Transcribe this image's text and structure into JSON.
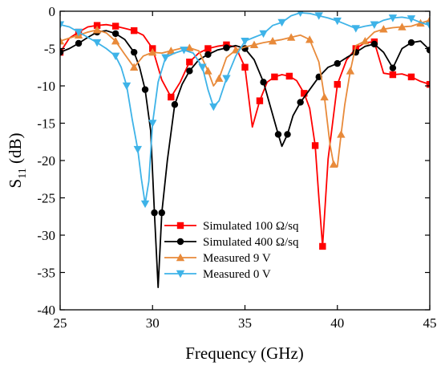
{
  "chart_data": {
    "type": "line",
    "xlabel": "Frequency (GHz)",
    "ylabel_main": "S",
    "ylabel_sub": "11",
    "ylabel_unit": " (dB)",
    "xlim": [
      25,
      45
    ],
    "ylim": [
      -40,
      0
    ],
    "xticks": [
      25,
      30,
      35,
      40,
      45
    ],
    "yticks": [
      0,
      -5,
      -10,
      -15,
      -20,
      -25,
      -30,
      -35,
      -40
    ],
    "legend_position": "lower-center",
    "series": [
      {
        "name": "Simulated 100 Ω/sq",
        "color": "#ff0000",
        "marker": "square",
        "x": [
          25,
          25.5,
          26,
          26.5,
          27,
          27.5,
          28,
          28.5,
          29,
          29.5,
          30,
          30.5,
          31,
          31.5,
          32,
          32.5,
          33,
          33.5,
          34,
          34.5,
          35,
          35.4,
          35.8,
          36.2,
          36.6,
          37,
          37.4,
          37.8,
          38.2,
          38.5,
          38.8,
          39.0,
          39.2,
          39.5,
          40,
          40.5,
          41,
          41.5,
          42,
          42.5,
          43,
          43.5,
          44,
          44.5,
          45
        ],
        "y": [
          -5.5,
          -3.6,
          -2.8,
          -2.1,
          -1.9,
          -1.8,
          -2.0,
          -2.3,
          -2.6,
          -3.2,
          -5.0,
          -9.2,
          -11.5,
          -9.5,
          -6.8,
          -5.6,
          -5.0,
          -4.7,
          -4.5,
          -4.8,
          -7.5,
          -15.5,
          -12.0,
          -9.5,
          -8.8,
          -8.5,
          -8.7,
          -9.3,
          -11.0,
          -13.0,
          -18.0,
          -25.0,
          -31.5,
          -19.8,
          -9.8,
          -6.5,
          -5.0,
          -4.2,
          -4.1,
          -8.3,
          -8.5,
          -8.4,
          -8.8,
          -9.4,
          -9.8
        ]
      },
      {
        "name": "Simulated 400 Ω/sq",
        "color": "#000000",
        "marker": "circle",
        "x": [
          25,
          25.5,
          26,
          26.5,
          27,
          27.5,
          28,
          28.5,
          29,
          29.3,
          29.6,
          29.9,
          30.1,
          30.3,
          30.5,
          30.8,
          31.2,
          31.6,
          32,
          32.5,
          33,
          33.5,
          34,
          34.5,
          35,
          35.5,
          36,
          36.4,
          36.8,
          37.0,
          37.3,
          37.6,
          38,
          38.5,
          39,
          39.5,
          40,
          40.5,
          41,
          41.5,
          42,
          42.5,
          43,
          43.5,
          44,
          44.5,
          45
        ],
        "y": [
          -5.5,
          -5.0,
          -4.3,
          -3.5,
          -2.8,
          -2.6,
          -3.0,
          -3.8,
          -5.5,
          -7.5,
          -10.5,
          -16.0,
          -27.0,
          -37.0,
          -27.0,
          -20.0,
          -12.5,
          -9.8,
          -8.0,
          -6.5,
          -5.8,
          -5.2,
          -4.9,
          -4.6,
          -5.0,
          -6.5,
          -9.5,
          -13.0,
          -16.5,
          -18.1,
          -16.5,
          -14.0,
          -12.2,
          -10.5,
          -8.8,
          -7.5,
          -7.0,
          -6.2,
          -5.5,
          -4.7,
          -4.4,
          -5.5,
          -7.6,
          -5.0,
          -4.2,
          -4.0,
          -5.2
        ]
      },
      {
        "name": "Measured 9 V",
        "color": "#e88a3a",
        "marker": "triangle-up",
        "x": [
          25,
          25.5,
          26,
          26.5,
          27,
          27.5,
          28,
          28.5,
          29,
          29.5,
          30,
          30.5,
          31,
          31.5,
          32,
          32.5,
          33,
          33.3,
          33.6,
          34,
          34.5,
          35,
          35.5,
          36,
          36.5,
          37,
          37.5,
          38,
          38.5,
          39,
          39.3,
          39.6,
          39.8,
          40.0,
          40.2,
          40.4,
          40.7,
          41,
          41.5,
          42,
          42.5,
          43,
          43.5,
          44,
          44.5,
          45
        ],
        "y": [
          -4.0,
          -3.6,
          -3.2,
          -2.8,
          -2.5,
          -2.9,
          -4.0,
          -5.8,
          -7.5,
          -6.0,
          -5.5,
          -5.6,
          -5.3,
          -5.0,
          -4.9,
          -5.3,
          -8.0,
          -10.0,
          -9.0,
          -6.2,
          -5.2,
          -4.8,
          -4.5,
          -4.2,
          -4.0,
          -3.8,
          -3.5,
          -3.2,
          -3.8,
          -6.8,
          -11.5,
          -17.8,
          -20.5,
          -20.8,
          -16.5,
          -12.5,
          -8.0,
          -4.6,
          -4.0,
          -2.8,
          -2.4,
          -2.2,
          -2.1,
          -2.0,
          -1.6,
          -1.2
        ]
      },
      {
        "name": "Measured 0 V",
        "color": "#3eb3e8",
        "marker": "triangle-down",
        "x": [
          25,
          25.5,
          26,
          26.5,
          27,
          27.5,
          28,
          28.3,
          28.6,
          28.9,
          29.2,
          29.4,
          29.6,
          29.8,
          30,
          30.3,
          30.7,
          31.2,
          31.7,
          32.2,
          32.7,
          33.0,
          33.3,
          33.6,
          34,
          34.5,
          35,
          35.5,
          36,
          36.5,
          37,
          37.5,
          38,
          38.5,
          39,
          39.5,
          40,
          40.5,
          41,
          41.5,
          42,
          42.5,
          43,
          43.5,
          44,
          44.5,
          45
        ],
        "y": [
          -1.8,
          -2.1,
          -2.8,
          -3.5,
          -4.2,
          -5.0,
          -6.0,
          -7.5,
          -10.0,
          -14.5,
          -18.5,
          -22.5,
          -25.8,
          -22.8,
          -15.0,
          -9.5,
          -6.2,
          -5.6,
          -5.2,
          -5.6,
          -7.5,
          -10.5,
          -12.8,
          -12.0,
          -9.0,
          -6.0,
          -4.0,
          -3.5,
          -3.0,
          -1.9,
          -1.5,
          -0.6,
          -0.2,
          -0.3,
          -0.6,
          -0.9,
          -1.3,
          -1.8,
          -2.3,
          -2.0,
          -1.8,
          -1.2,
          -0.9,
          -0.8,
          -1.0,
          -1.5,
          -1.9
        ]
      }
    ]
  }
}
